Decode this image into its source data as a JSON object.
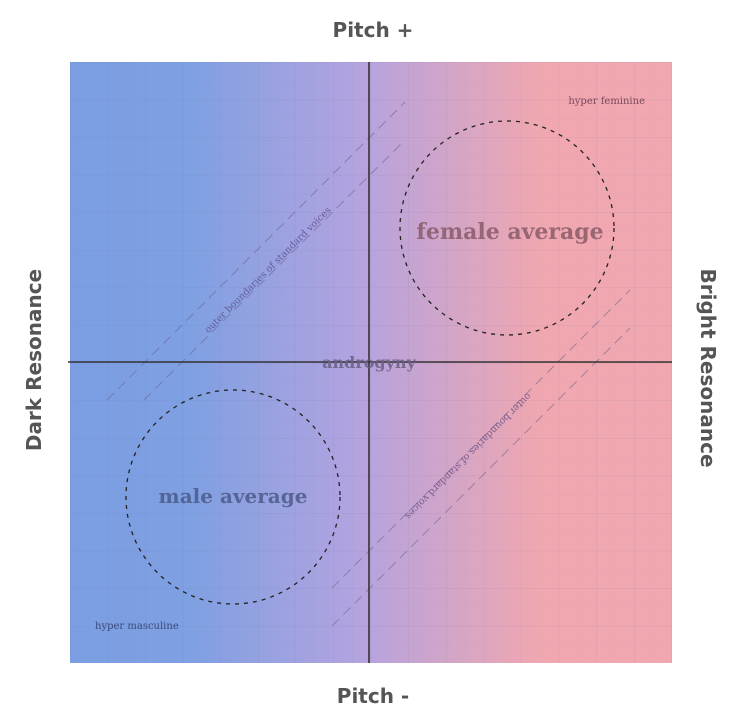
{
  "axes": {
    "top": "Pitch +",
    "bottom": "Pitch -",
    "left": "Dark Resonance",
    "right": "Bright Resonance"
  },
  "regions": {
    "female_average": "female average",
    "male_average": "male average",
    "androgyny": "androgyny",
    "hyper_feminine": "hyper feminine",
    "hyper_masculine": "hyper masculine",
    "boundary_upper": "outer boundaries of standard voices",
    "boundary_lower": "outer boundaries of standard voices"
  },
  "colors": {
    "masculine": "#7b9ee2",
    "androgynous": "#b4a3df",
    "feminine": "#f0a7b0",
    "axis_line": "#333333",
    "label_text": "#6a5a70"
  }
}
